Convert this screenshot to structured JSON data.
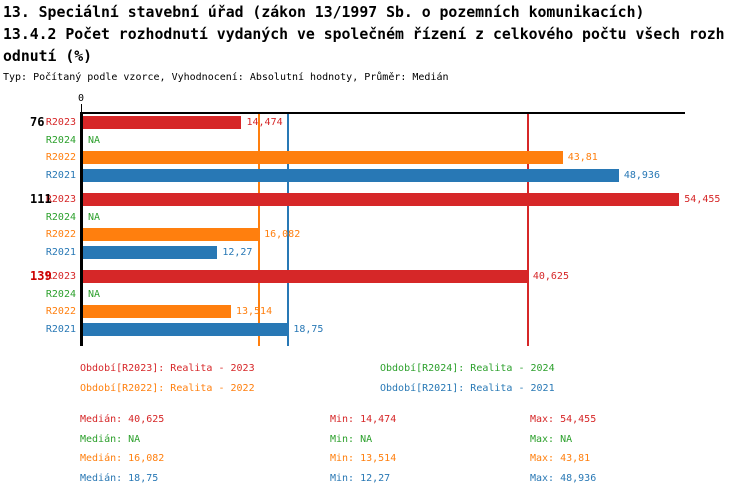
{
  "header": {
    "title_line1": "13. Speciální stavební úřad (zákon 13/1997 Sb. o pozemních komunikacích)",
    "title_line2": "13.4.2 Počet rozhodnutí vydaných ve společném řízení z celkového počtu všech rozh",
    "title_line3": "odnutí (%)",
    "meta": "Typ: Počítaný podle vzorce, Vyhodnocení: Absolutní hodnoty, Průměr: Medián"
  },
  "colors": {
    "R2023": "#d62728",
    "R2024": "#2ca02c",
    "R2022": "#ff7f0e",
    "R2021": "#2878b5",
    "axis": "#000000",
    "group_label": "#000000",
    "highlight_group_label": "#cc0000"
  },
  "chart_data": {
    "type": "bar",
    "orientation": "horizontal",
    "title": "13.4.2 Počet rozhodnutí vydaných ve společném řízení z celkového počtu všech rozhodnutí (%)",
    "xlim": [
      0,
      55
    ],
    "x_tick_labels": [
      "0"
    ],
    "grid": false,
    "series_order": [
      "R2023",
      "R2024",
      "R2022",
      "R2021"
    ],
    "groups": [
      {
        "label": "76",
        "highlight": false,
        "bars": [
          {
            "series": "R2023",
            "value": 14.474,
            "display": "14,474"
          },
          {
            "series": "R2024",
            "value": null,
            "display": "NA"
          },
          {
            "series": "R2022",
            "value": 43.81,
            "display": "43,81"
          },
          {
            "series": "R2021",
            "value": 48.936,
            "display": "48,936"
          }
        ]
      },
      {
        "label": "111",
        "highlight": false,
        "bars": [
          {
            "series": "R2023",
            "value": 54.455,
            "display": "54,455"
          },
          {
            "series": "R2024",
            "value": null,
            "display": "NA"
          },
          {
            "series": "R2022",
            "value": 16.082,
            "display": "16,082"
          },
          {
            "series": "R2021",
            "value": 12.27,
            "display": "12,27"
          }
        ]
      },
      {
        "label": "139",
        "highlight": true,
        "bars": [
          {
            "series": "R2023",
            "value": 40.625,
            "display": "40,625"
          },
          {
            "series": "R2024",
            "value": null,
            "display": "NA"
          },
          {
            "series": "R2022",
            "value": 13.514,
            "display": "13,514"
          },
          {
            "series": "R2021",
            "value": 18.75,
            "display": "18,75"
          }
        ]
      }
    ],
    "median_lines": [
      {
        "series": "R2023",
        "value": 40.625
      },
      {
        "series": "R2022",
        "value": 16.082
      },
      {
        "series": "R2021",
        "value": 18.75
      }
    ]
  },
  "legend": {
    "items": [
      {
        "series": "R2023",
        "label": "Období[R2023]: Realita - 2023"
      },
      {
        "series": "R2024",
        "label": "Období[R2024]: Realita - 2024"
      },
      {
        "series": "R2022",
        "label": "Období[R2022]: Realita - 2022"
      },
      {
        "series": "R2021",
        "label": "Období[R2021]: Realita - 2021"
      }
    ]
  },
  "stats": {
    "rows": [
      {
        "series": "R2023",
        "median": "Medián: 40,625",
        "min": "Min: 14,474",
        "max": "Max: 54,455"
      },
      {
        "series": "R2024",
        "median": "Medián: NA",
        "min": "Min: NA",
        "max": "Max: NA"
      },
      {
        "series": "R2022",
        "median": "Medián: 16,082",
        "min": "Min: 13,514",
        "max": "Max: 43,81"
      },
      {
        "series": "R2021",
        "median": "Medián: 18,75",
        "min": "Min: 12,27",
        "max": "Max: 48,936"
      }
    ]
  }
}
